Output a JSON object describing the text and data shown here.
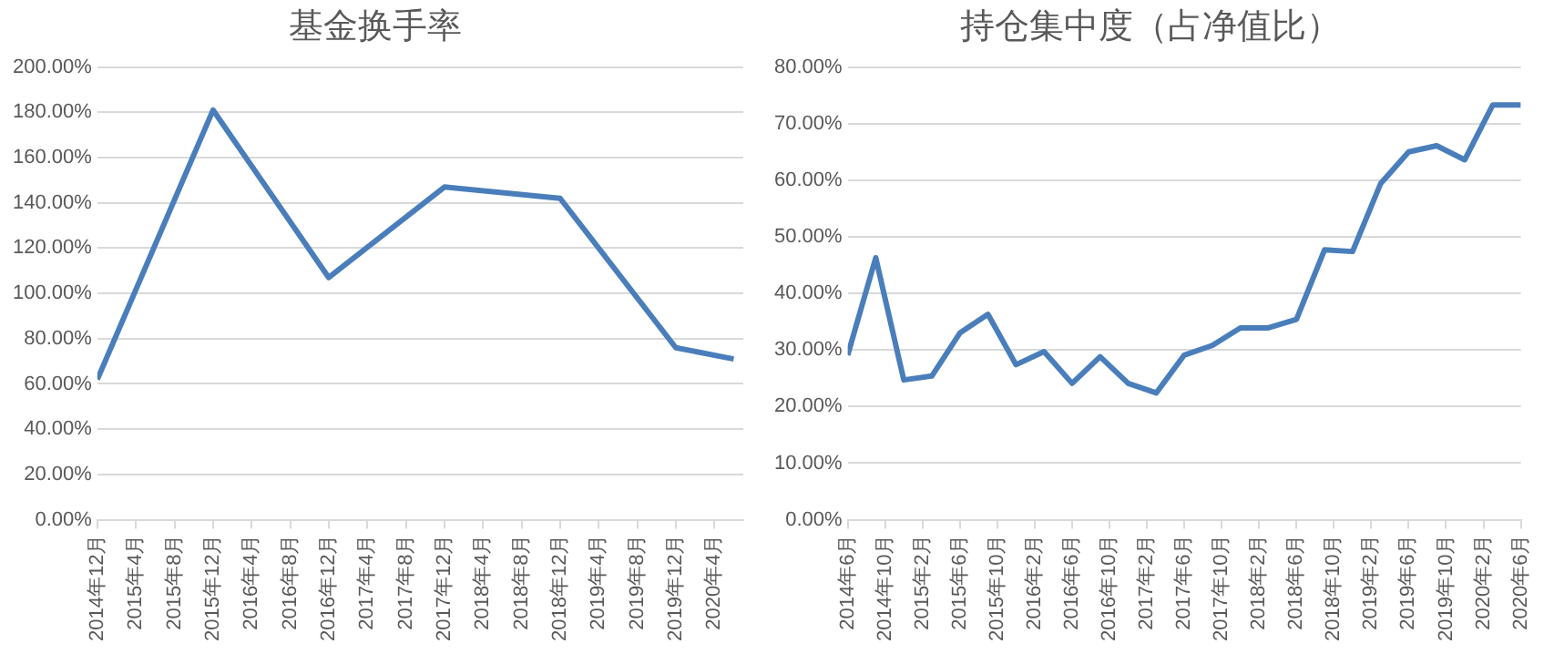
{
  "chart_data": [
    {
      "type": "line",
      "title": "基金换手率",
      "x": [
        "2014-12",
        "2015-12",
        "2016-12",
        "2017-12",
        "2018-12",
        "2019-12",
        "2020-06"
      ],
      "series": [
        {
          "color": "#4a7ebb",
          "values": [
            62,
            181,
            107,
            147,
            142,
            76,
            71
          ]
        }
      ],
      "xlim": [
        "2014-12",
        "2020-07"
      ],
      "xticks": [
        {
          "value": "2014-12",
          "label": "2014年12月"
        },
        {
          "value": "2015-04",
          "label": "2015年4月"
        },
        {
          "value": "2015-08",
          "label": "2015年8月"
        },
        {
          "value": "2015-12",
          "label": "2015年12月"
        },
        {
          "value": "2016-04",
          "label": "2016年4月"
        },
        {
          "value": "2016-08",
          "label": "2016年8月"
        },
        {
          "value": "2016-12",
          "label": "2016年12月"
        },
        {
          "value": "2017-04",
          "label": "2017年4月"
        },
        {
          "value": "2017-08",
          "label": "2017年8月"
        },
        {
          "value": "2017-12",
          "label": "2017年12月"
        },
        {
          "value": "2018-04",
          "label": "2018年4月"
        },
        {
          "value": "2018-08",
          "label": "2018年8月"
        },
        {
          "value": "2018-12",
          "label": "2018年12月"
        },
        {
          "value": "2019-04",
          "label": "2019年4月"
        },
        {
          "value": "2019-08",
          "label": "2019年8月"
        },
        {
          "value": "2019-12",
          "label": "2019年12月"
        },
        {
          "value": "2020-04",
          "label": "2020年4月"
        }
      ],
      "ylim": [
        0,
        200
      ],
      "yticks": [
        {
          "value": 0,
          "label": "0.00%"
        },
        {
          "value": 20,
          "label": "20.00%"
        },
        {
          "value": 40,
          "label": "40.00%"
        },
        {
          "value": 60,
          "label": "60.00%"
        },
        {
          "value": 80,
          "label": "80.00%"
        },
        {
          "value": 100,
          "label": "100.00%"
        },
        {
          "value": 120,
          "label": "120.00%"
        },
        {
          "value": 140,
          "label": "140.00%"
        },
        {
          "value": 160,
          "label": "160.00%"
        },
        {
          "value": 180,
          "label": "180.00%"
        },
        {
          "value": 200,
          "label": "200.00%"
        }
      ],
      "grid": "y",
      "legend": false,
      "marker": "none",
      "line_style": "solid"
    },
    {
      "type": "line",
      "title": "持仓集中度（占净值比）",
      "x": [
        "2014-06",
        "2014-09",
        "2014-12",
        "2015-03",
        "2015-06",
        "2015-09",
        "2015-12",
        "2016-03",
        "2016-06",
        "2016-09",
        "2016-12",
        "2017-03",
        "2017-06",
        "2017-09",
        "2017-12",
        "2018-03",
        "2018-06",
        "2018-09",
        "2018-12",
        "2019-03",
        "2019-06",
        "2019-09",
        "2019-12",
        "2020-03",
        "2020-06"
      ],
      "series": [
        {
          "color": "#4a7ebb",
          "values": [
            29.1,
            46.3,
            24.7,
            25.4,
            33.0,
            36.3,
            27.4,
            29.7,
            24.1,
            28.8,
            24.1,
            22.4,
            29.1,
            30.8,
            33.9,
            33.9,
            35.4,
            47.7,
            47.4,
            59.4,
            65.0,
            66.1,
            63.6,
            73.3,
            73.3
          ]
        }
      ],
      "xlim": [
        "2014-06",
        "2020-06"
      ],
      "xticks": [
        {
          "value": "2014-06",
          "label": "2014年6月"
        },
        {
          "value": "2014-10",
          "label": "2014年10月"
        },
        {
          "value": "2015-02",
          "label": "2015年2月"
        },
        {
          "value": "2015-06",
          "label": "2015年6月"
        },
        {
          "value": "2015-10",
          "label": "2015年10月"
        },
        {
          "value": "2016-02",
          "label": "2016年2月"
        },
        {
          "value": "2016-06",
          "label": "2016年6月"
        },
        {
          "value": "2016-10",
          "label": "2016年10月"
        },
        {
          "value": "2017-02",
          "label": "2017年2月"
        },
        {
          "value": "2017-06",
          "label": "2017年6月"
        },
        {
          "value": "2017-10",
          "label": "2017年10月"
        },
        {
          "value": "2018-02",
          "label": "2018年2月"
        },
        {
          "value": "2018-06",
          "label": "2018年6月"
        },
        {
          "value": "2018-10",
          "label": "2018年10月"
        },
        {
          "value": "2019-02",
          "label": "2019年2月"
        },
        {
          "value": "2019-06",
          "label": "2019年6月"
        },
        {
          "value": "2019-10",
          "label": "2019年10月"
        },
        {
          "value": "2020-02",
          "label": "2020年2月"
        },
        {
          "value": "2020-06",
          "label": "2020年6月"
        }
      ],
      "ylim": [
        0,
        80
      ],
      "yticks": [
        {
          "value": 0,
          "label": "0.00%"
        },
        {
          "value": 10,
          "label": "10.00%"
        },
        {
          "value": 20,
          "label": "20.00%"
        },
        {
          "value": 30,
          "label": "30.00%"
        },
        {
          "value": 40,
          "label": "40.00%"
        },
        {
          "value": 50,
          "label": "50.00%"
        },
        {
          "value": 60,
          "label": "60.00%"
        },
        {
          "value": 70,
          "label": "70.00%"
        },
        {
          "value": 80,
          "label": "80.00%"
        }
      ],
      "grid": "y",
      "legend": false,
      "marker": "none",
      "line_style": "solid"
    }
  ]
}
